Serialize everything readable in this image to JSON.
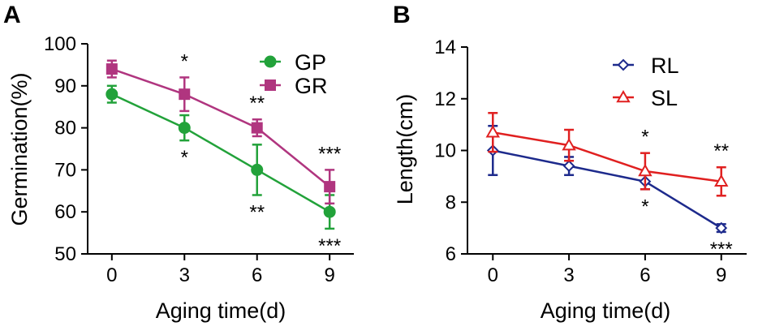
{
  "chart_data": [
    {
      "type": "line",
      "panel_label": "A",
      "x": [
        0,
        3,
        6,
        9
      ],
      "xticks": [
        "0",
        "3",
        "6",
        "9"
      ],
      "xlim": [
        -1,
        10
      ],
      "xlabel": "Aging time(d)",
      "ylabel": "Germination(%)",
      "ylim": [
        50,
        100
      ],
      "yticks": [
        "50",
        "60",
        "70",
        "80",
        "90",
        "100"
      ],
      "series": [
        {
          "name": "GP",
          "color": "#22a23a",
          "marker": "circle",
          "values": [
            88,
            80,
            70,
            60
          ],
          "errors": [
            2,
            3,
            6,
            4
          ],
          "significance": [
            "",
            "*",
            "**",
            "***"
          ],
          "sig_position": "below"
        },
        {
          "name": "GR",
          "color": "#b0357f",
          "marker": "square",
          "values": [
            94,
            88,
            80,
            66
          ],
          "errors": [
            2,
            4,
            2,
            4
          ],
          "significance": [
            "",
            "*",
            "**",
            "***"
          ],
          "sig_position": "above"
        }
      ],
      "legend": "top-right"
    },
    {
      "type": "line",
      "panel_label": "B",
      "x": [
        0,
        3,
        6,
        9
      ],
      "xticks": [
        "0",
        "3",
        "6",
        "9"
      ],
      "xlim": [
        -1,
        10
      ],
      "xlabel": "Aging time(d)",
      "ylabel": "Length(cm)",
      "ylim": [
        6,
        14
      ],
      "yticks": [
        "6",
        "8",
        "10",
        "12",
        "14"
      ],
      "series": [
        {
          "name": "RL",
          "color": "#1d2a8c",
          "marker": "diamond-open",
          "values": [
            10.0,
            9.4,
            8.8,
            7.0
          ],
          "errors": [
            0.95,
            0.35,
            0.3,
            0.15
          ],
          "significance": [
            "",
            "",
            "*",
            "***"
          ],
          "sig_position": "below"
        },
        {
          "name": "SL",
          "color": "#e02020",
          "marker": "triangle-open",
          "values": [
            10.7,
            10.2,
            9.2,
            8.8
          ],
          "errors": [
            0.75,
            0.6,
            0.7,
            0.55
          ],
          "significance": [
            "",
            "",
            "*",
            "**"
          ],
          "sig_position": "above"
        }
      ],
      "legend": "top-right"
    }
  ]
}
